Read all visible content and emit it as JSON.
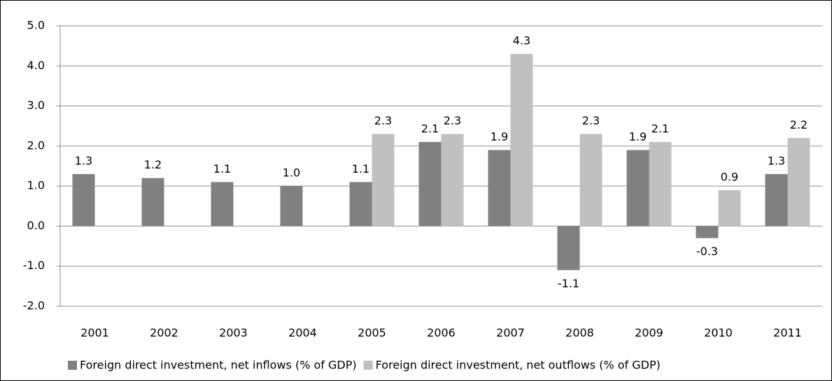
{
  "chart_data": {
    "type": "bar",
    "categories": [
      "2001",
      "2002",
      "2003",
      "2004",
      "2005",
      "2006",
      "2007",
      "2008",
      "2009",
      "2010",
      "2011"
    ],
    "series": [
      {
        "name": "Foreign direct investment, net inflows (% of GDP)",
        "color": "#808080",
        "values": [
          1.3,
          1.2,
          1.1,
          1.0,
          1.1,
          2.1,
          1.9,
          -1.1,
          1.9,
          -0.3,
          1.3
        ],
        "value_labels": [
          "1.3",
          "1.2",
          "1.1",
          "1.0",
          "1.1",
          "2.1",
          "1.9",
          "-1.1",
          "1.9",
          "-0.3",
          "1.3"
        ]
      },
      {
        "name": "Foreign direct investment, net outflows (% of GDP)",
        "color": "#c0c0c0",
        "values": [
          null,
          null,
          null,
          null,
          2.3,
          2.3,
          4.3,
          2.3,
          2.1,
          0.9,
          2.2
        ],
        "value_labels": [
          null,
          null,
          null,
          null,
          "2.3",
          "2.3",
          "4.3",
          "2.3",
          "2.1",
          "0.9",
          "2.2"
        ]
      }
    ],
    "ylim": [
      -2,
      5
    ],
    "yticks": [
      {
        "value": -2,
        "label": "-2.0"
      },
      {
        "value": -1,
        "label": "-1.0"
      },
      {
        "value": 0,
        "label": "0.0"
      },
      {
        "value": 1,
        "label": "1.0"
      },
      {
        "value": 2,
        "label": "2.0"
      },
      {
        "value": 3,
        "label": "3.0"
      },
      {
        "value": 4,
        "label": "4.0"
      },
      {
        "value": 5,
        "label": "5.0"
      }
    ],
    "grid": true,
    "legend": "bottom"
  }
}
